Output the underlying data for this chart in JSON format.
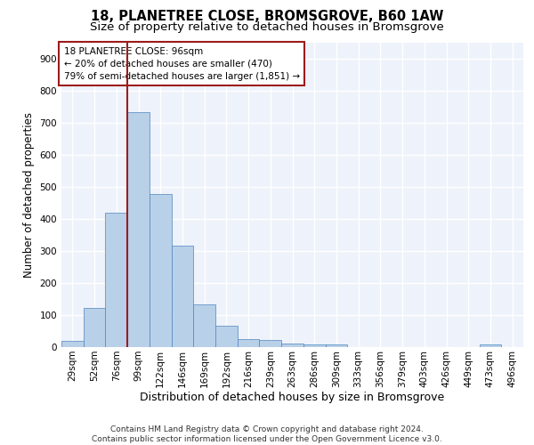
{
  "title1": "18, PLANETREE CLOSE, BROMSGROVE, B60 1AW",
  "title2": "Size of property relative to detached houses in Bromsgrove",
  "xlabel": "Distribution of detached houses by size in Bromsgrove",
  "ylabel": "Number of detached properties",
  "categories": [
    "29sqm",
    "52sqm",
    "76sqm",
    "99sqm",
    "122sqm",
    "146sqm",
    "169sqm",
    "192sqm",
    "216sqm",
    "239sqm",
    "263sqm",
    "286sqm",
    "309sqm",
    "333sqm",
    "356sqm",
    "379sqm",
    "403sqm",
    "426sqm",
    "449sqm",
    "473sqm",
    "496sqm"
  ],
  "values": [
    20,
    122,
    420,
    733,
    478,
    315,
    133,
    66,
    25,
    22,
    10,
    7,
    7,
    0,
    0,
    0,
    0,
    0,
    0,
    9,
    0
  ],
  "bar_color": "#b8d0e8",
  "bar_edge_color": "#4f86c0",
  "background_color": "#eef2fa",
  "grid_color": "#ffffff",
  "vline_color": "#9b1c1c",
  "annotation_text": "18 PLANETREE CLOSE: 96sqm\n← 20% of detached houses are smaller (470)\n79% of semi-detached houses are larger (1,851) →",
  "annotation_box_color": "#9b1c1c",
  "ylim": [
    0,
    950
  ],
  "yticks": [
    0,
    100,
    200,
    300,
    400,
    500,
    600,
    700,
    800,
    900
  ],
  "footer": "Contains HM Land Registry data © Crown copyright and database right 2024.\nContains public sector information licensed under the Open Government Licence v3.0.",
  "title1_fontsize": 10.5,
  "title2_fontsize": 9.5,
  "xlabel_fontsize": 9,
  "ylabel_fontsize": 8.5,
  "tick_fontsize": 7.5,
  "annotation_fontsize": 7.5,
  "footer_fontsize": 6.5
}
